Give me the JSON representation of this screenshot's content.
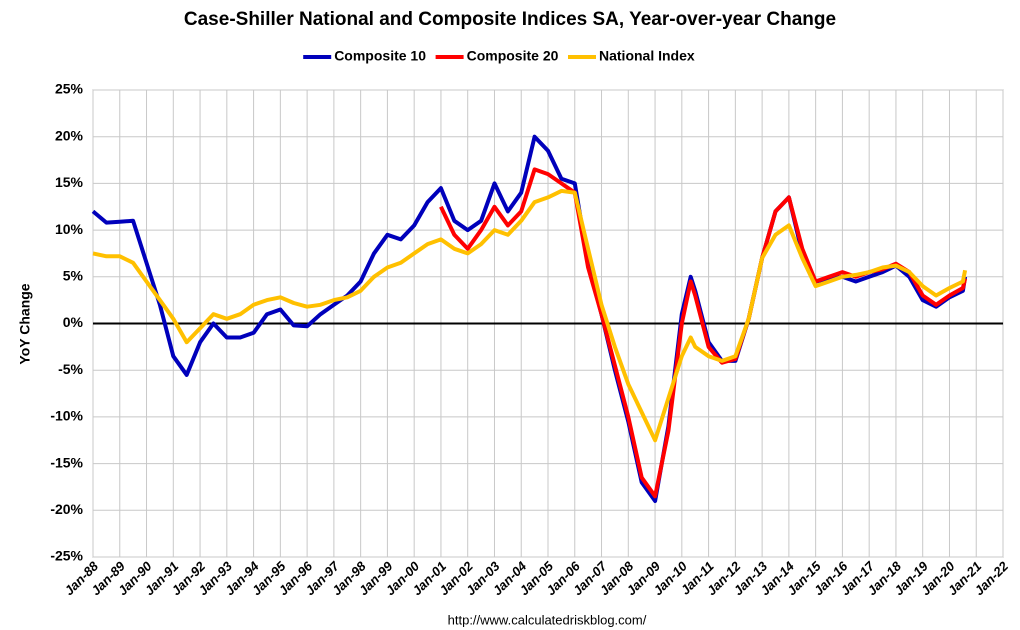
{
  "chart_data": {
    "type": "line",
    "title": "Case-Shiller National and Composite Indices SA, Year-over-year Change",
    "y_label": "YoY Change",
    "source": "http://www.calculatedriskblog.com/",
    "x": [
      "1988-01",
      "1988-07",
      "1989-01",
      "1989-07",
      "1990-01",
      "1990-07",
      "1991-01",
      "1991-07",
      "1992-01",
      "1992-07",
      "1993-01",
      "1993-07",
      "1994-01",
      "1994-07",
      "1995-01",
      "1995-07",
      "1996-01",
      "1996-07",
      "1997-01",
      "1997-07",
      "1998-01",
      "1998-07",
      "1999-01",
      "1999-07",
      "2000-01",
      "2000-07",
      "2001-01",
      "2001-07",
      "2002-01",
      "2002-07",
      "2003-01",
      "2003-07",
      "2004-01",
      "2004-07",
      "2005-01",
      "2005-07",
      "2006-01",
      "2006-07",
      "2007-01",
      "2007-07",
      "2008-01",
      "2008-07",
      "2009-01",
      "2009-07",
      "2010-01",
      "2010-05",
      "2010-07",
      "2011-01",
      "2011-07",
      "2012-01",
      "2012-07",
      "2013-01",
      "2013-07",
      "2014-01",
      "2014-07",
      "2015-01",
      "2015-07",
      "2016-01",
      "2016-07",
      "2017-01",
      "2017-07",
      "2018-01",
      "2018-07",
      "2019-01",
      "2019-07",
      "2020-01",
      "2020-07",
      "2020-08"
    ],
    "series": [
      {
        "name": "Composite 10",
        "color": "#0000bb",
        "values": [
          12.0,
          10.8,
          10.9,
          11.0,
          6.5,
          2.0,
          -3.5,
          -5.5,
          -2.0,
          0.0,
          -1.5,
          -1.5,
          -1.0,
          1.0,
          1.5,
          -0.2,
          -0.3,
          1.0,
          2.0,
          3.0,
          4.5,
          7.5,
          9.5,
          9.0,
          10.5,
          13.0,
          14.5,
          11.0,
          10.0,
          11.0,
          15.0,
          12.0,
          14.0,
          20.0,
          18.5,
          15.5,
          15.0,
          6.5,
          1.0,
          -5.0,
          -10.5,
          -17.0,
          -19.0,
          -11.0,
          1.0,
          5.0,
          3.5,
          -2.0,
          -4.0,
          -4.0,
          0.5,
          7.0,
          12.0,
          13.5,
          7.5,
          4.5,
          4.8,
          5.0,
          4.5,
          5.0,
          5.5,
          6.2,
          5.0,
          2.5,
          1.8,
          2.8,
          3.5,
          5.0
        ]
      },
      {
        "name": "Composite 20",
        "color": "#ff0000",
        "values": [
          null,
          null,
          null,
          null,
          null,
          null,
          null,
          null,
          null,
          null,
          null,
          null,
          null,
          null,
          null,
          null,
          null,
          null,
          null,
          null,
          null,
          null,
          null,
          null,
          null,
          null,
          12.5,
          9.5,
          8.0,
          10.0,
          12.5,
          10.5,
          12.0,
          16.5,
          16.0,
          15.0,
          14.0,
          6.0,
          1.0,
          -4.5,
          -10.0,
          -16.5,
          -18.5,
          -11.5,
          0.0,
          4.5,
          3.0,
          -2.5,
          -4.2,
          -3.8,
          0.5,
          7.0,
          12.0,
          13.5,
          8.0,
          4.5,
          5.0,
          5.5,
          5.0,
          5.5,
          5.8,
          6.4,
          5.5,
          3.0,
          2.0,
          3.0,
          3.8,
          4.8
        ]
      },
      {
        "name": "National Index",
        "color": "#ffc000",
        "values": [
          7.5,
          7.2,
          7.2,
          6.5,
          4.5,
          2.5,
          0.5,
          -2.0,
          -0.5,
          1.0,
          0.5,
          1.0,
          2.0,
          2.5,
          2.8,
          2.2,
          1.8,
          2.0,
          2.5,
          2.8,
          3.5,
          5.0,
          6.0,
          6.5,
          7.5,
          8.5,
          9.0,
          8.0,
          7.5,
          8.5,
          10.0,
          9.5,
          11.0,
          13.0,
          13.5,
          14.2,
          14.0,
          8.0,
          2.0,
          -2.5,
          -6.5,
          -9.5,
          -12.5,
          -8.0,
          -3.5,
          -1.5,
          -2.5,
          -3.5,
          -4.0,
          -3.5,
          0.5,
          7.0,
          9.5,
          10.5,
          7.0,
          4.0,
          4.5,
          5.0,
          5.2,
          5.5,
          6.0,
          6.2,
          5.5,
          4.0,
          3.0,
          3.8,
          4.5,
          5.7
        ]
      }
    ],
    "xlim": [
      "1988-01",
      "2022-01"
    ],
    "xticks": [
      {
        "value": "1988-01",
        "label": "Jan-88"
      },
      {
        "value": "1989-01",
        "label": "Jan-89"
      },
      {
        "value": "1990-01",
        "label": "Jan-90"
      },
      {
        "value": "1991-01",
        "label": "Jan-91"
      },
      {
        "value": "1992-01",
        "label": "Jan-92"
      },
      {
        "value": "1993-01",
        "label": "Jan-93"
      },
      {
        "value": "1994-01",
        "label": "Jan-94"
      },
      {
        "value": "1995-01",
        "label": "Jan-95"
      },
      {
        "value": "1996-01",
        "label": "Jan-96"
      },
      {
        "value": "1997-01",
        "label": "Jan-97"
      },
      {
        "value": "1998-01",
        "label": "Jan-98"
      },
      {
        "value": "1999-01",
        "label": "Jan-99"
      },
      {
        "value": "2000-01",
        "label": "Jan-00"
      },
      {
        "value": "2001-01",
        "label": "Jan-01"
      },
      {
        "value": "2002-01",
        "label": "Jan-02"
      },
      {
        "value": "2003-01",
        "label": "Jan-03"
      },
      {
        "value": "2004-01",
        "label": "Jan-04"
      },
      {
        "value": "2005-01",
        "label": "Jan-05"
      },
      {
        "value": "2006-01",
        "label": "Jan-06"
      },
      {
        "value": "2007-01",
        "label": "Jan-07"
      },
      {
        "value": "2008-01",
        "label": "Jan-08"
      },
      {
        "value": "2009-01",
        "label": "Jan-09"
      },
      {
        "value": "2010-01",
        "label": "Jan-10"
      },
      {
        "value": "2011-01",
        "label": "Jan-11"
      },
      {
        "value": "2012-01",
        "label": "Jan-12"
      },
      {
        "value": "2013-01",
        "label": "Jan-13"
      },
      {
        "value": "2014-01",
        "label": "Jan-14"
      },
      {
        "value": "2015-01",
        "label": "Jan-15"
      },
      {
        "value": "2016-01",
        "label": "Jan-16"
      },
      {
        "value": "2017-01",
        "label": "Jan-17"
      },
      {
        "value": "2018-01",
        "label": "Jan-18"
      },
      {
        "value": "2019-01",
        "label": "Jan-19"
      },
      {
        "value": "2020-01",
        "label": "Jan-20"
      },
      {
        "value": "2021-01",
        "label": "Jan-21"
      },
      {
        "value": "2022-01",
        "label": "Jan-22"
      }
    ],
    "ylim": [
      -25,
      25
    ],
    "yticks": [
      {
        "value": -25,
        "label": "-25%"
      },
      {
        "value": -20,
        "label": "-20%"
      },
      {
        "value": -15,
        "label": "-15%"
      },
      {
        "value": -10,
        "label": "-10%"
      },
      {
        "value": -5,
        "label": "-5%"
      },
      {
        "value": 0,
        "label": "0%"
      },
      {
        "value": 5,
        "label": "5%"
      },
      {
        "value": 10,
        "label": "10%"
      },
      {
        "value": 15,
        "label": "15%"
      },
      {
        "value": 20,
        "label": "20%"
      },
      {
        "value": 25,
        "label": "25%"
      }
    ],
    "grid": true,
    "legend": "top"
  }
}
